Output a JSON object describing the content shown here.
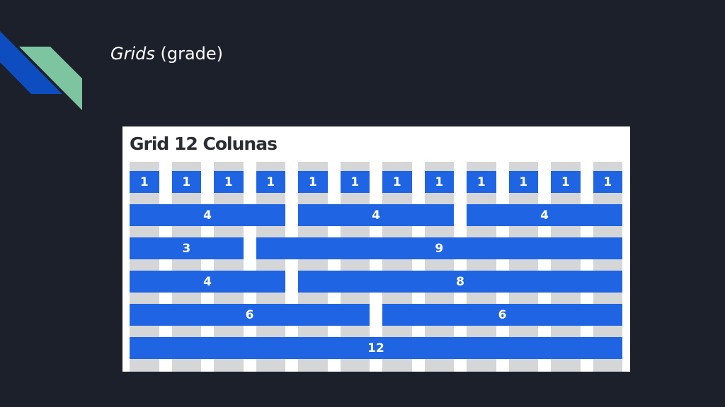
{
  "slide": {
    "title_emphasis": "Grids",
    "title_rest": " (grade)"
  },
  "colors": {
    "background": "#1c202b",
    "accent_blue": "#0e4dc0",
    "accent_teal": "#7dc4a0",
    "bar_blue": "#1f64e3",
    "column_gray": "#d5d6d8"
  },
  "figure": {
    "title": "Grid 12 Colunas",
    "columns": 12,
    "rows": [
      [
        1,
        1,
        1,
        1,
        1,
        1,
        1,
        1,
        1,
        1,
        1,
        1
      ],
      [
        4,
        4,
        4
      ],
      [
        3,
        9
      ],
      [
        4,
        8
      ],
      [
        6,
        6
      ],
      [
        12
      ]
    ]
  }
}
